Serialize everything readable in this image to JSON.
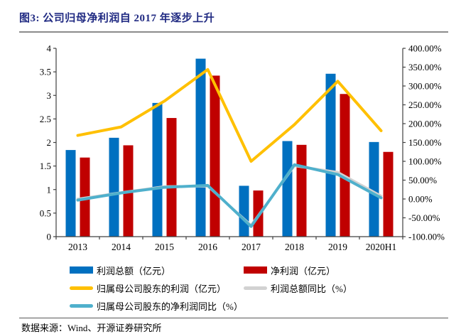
{
  "title": "图3: 公司归母净利润自 2017 年逐步上升",
  "footer": {
    "source": "数据来源：Wind、开源证券研究所"
  },
  "colors": {
    "title_navy": "#202a82",
    "bar_blue": "#0070C0",
    "bar_red": "#C00000",
    "line_yellow": "#FFC000",
    "line_gray": "#D2D2D2",
    "line_teal": "#4FB0CC",
    "axis": "#404040"
  },
  "chart_data": {
    "type": "combo_bar_line",
    "title": "图3: 公司归母净利润自 2017 年逐步上升",
    "categories": [
      "2013",
      "2014",
      "2015",
      "2016",
      "2017",
      "2018",
      "2019",
      "2020H1"
    ],
    "series": [
      {
        "name": "利润总额（亿元）",
        "kind": "bar",
        "axis": "left",
        "color": "#0070C0",
        "values": [
          1.84,
          2.1,
          2.84,
          3.78,
          1.08,
          2.03,
          3.46,
          2.01
        ]
      },
      {
        "name": "净利润（亿元）",
        "kind": "bar",
        "axis": "left",
        "color": "#C00000",
        "values": [
          1.68,
          1.94,
          2.52,
          3.42,
          0.98,
          1.95,
          3.03,
          1.8
        ]
      },
      {
        "name": "归属母公司股东的利润（亿元）",
        "kind": "line",
        "axis": "left",
        "color": "#FFC000",
        "values": [
          2.15,
          2.33,
          2.88,
          3.55,
          1.6,
          2.38,
          3.3,
          2.25
        ]
      },
      {
        "name": "利润总额同比（%）",
        "kind": "line",
        "axis": "right",
        "color": "#D2D2D2",
        "values": [
          0,
          17,
          33,
          34,
          -70,
          88,
          71,
          8
        ]
      },
      {
        "name": "归属母公司股东的净利润同比（%）",
        "kind": "line",
        "axis": "right",
        "color": "#4FB0CC",
        "values": [
          -3,
          16,
          31,
          36,
          -73,
          91,
          65,
          3
        ]
      }
    ],
    "left_axis": {
      "min": 0,
      "max": 4,
      "step": 0.5,
      "tick_labels": [
        "4",
        "3.5",
        "3",
        "2.5",
        "2",
        "1.5",
        "1",
        "0.5",
        "0"
      ]
    },
    "right_axis": {
      "min": -100,
      "max": 400,
      "step": 50,
      "tick_labels": [
        "400.00%",
        "350.00%",
        "300.00%",
        "250.00%",
        "200.00%",
        "150.00%",
        "100.00%",
        "50.00%",
        "0.00%",
        "-50.00%",
        "-100.00%"
      ]
    },
    "grid": false,
    "legend_position": "bottom"
  }
}
